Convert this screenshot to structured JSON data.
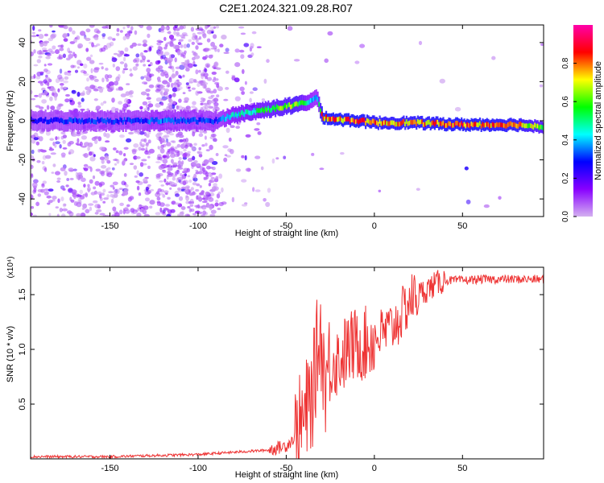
{
  "title": "C2E1.2024.321.09.28.R07",
  "chart_data": [
    {
      "type": "heatmap",
      "xlabel": "Height of straight line (km)",
      "ylabel": "Frequency (Hz)",
      "xlim": [
        -195,
        96
      ],
      "ylim": [
        -49,
        49
      ],
      "xticks": [
        -150,
        -100,
        -50,
        0,
        50
      ],
      "yticks": [
        -40,
        -20,
        0,
        20,
        40
      ],
      "grid": false,
      "colorbar": {
        "label": "Normalized spectral amplitude",
        "range": [
          0,
          1
        ],
        "ticks": [
          "0.0",
          "0.2",
          "0.4",
          "0.6",
          "0.8"
        ],
        "colors": [
          "#d4b0f0",
          "#8800ff",
          "#0000ff",
          "#00ffff",
          "#00ff00",
          "#ffff00",
          "#ff0000",
          "#ff00aa"
        ]
      },
      "ridge": {
        "x": [
          -195,
          -170,
          -150,
          -130,
          -126,
          -90,
          -80,
          -60,
          -45,
          -37,
          -33,
          -30,
          -25,
          -10,
          0,
          20,
          50,
          80,
          96
        ],
        "y": [
          0,
          0,
          0,
          0,
          0,
          0,
          3,
          6,
          8,
          10,
          12,
          2,
          1,
          0,
          -1,
          -1,
          -2,
          -2,
          -3
        ],
        "amplitude": [
          0.25,
          0.3,
          0.3,
          0.3,
          0.35,
          0.3,
          0.45,
          0.55,
          0.65,
          0.4,
          0.35,
          0.8,
          0.8,
          0.8,
          0.75,
          0.75,
          0.8,
          0.75,
          0.6
        ]
      }
    },
    {
      "type": "line",
      "xlabel": "Height of straight line (km)",
      "ylabel": "SNR (10 * v/v)",
      "multiplier": "(x10⁴)",
      "xlim": [
        -195,
        96
      ],
      "ylim": [
        0,
        1.75
      ],
      "xticks": [
        -150,
        -100,
        -50,
        0,
        50
      ],
      "yticks": [
        "0.5",
        "1.0",
        "1.5"
      ],
      "color": "#ee3333",
      "series": [
        {
          "x": [
            -195,
            -150,
            -100,
            -80,
            -60,
            -50,
            -45,
            -40,
            -35,
            -32,
            -30,
            -28,
            -25,
            -20,
            -15,
            -10,
            -5,
            0,
            5,
            10,
            15,
            20,
            25,
            30,
            35,
            40,
            50,
            60,
            70,
            80,
            96
          ],
          "values": [
            0.02,
            0.02,
            0.04,
            0.06,
            0.08,
            0.12,
            0.2,
            0.35,
            0.6,
            1.05,
            1.1,
            0.7,
            0.9,
            0.9,
            1.0,
            1.05,
            1.05,
            1.1,
            1.15,
            1.2,
            1.3,
            1.45,
            1.5,
            1.55,
            1.6,
            1.63,
            1.63,
            1.64,
            1.64,
            1.64,
            1.64
          ]
        }
      ]
    }
  ]
}
